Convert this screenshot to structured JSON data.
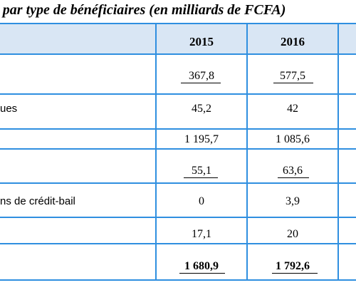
{
  "title": "s par type de bénéficiaires (en milliards de FCFA)",
  "table": {
    "columns": [
      "2015",
      "2016"
    ],
    "rows": [
      {
        "label": "",
        "v2015": "367,8",
        "v2016": "577,5"
      },
      {
        "label": "ues",
        "v2015": "45,2",
        "v2016": "42"
      },
      {
        "label": "",
        "v2015": "1 195,7",
        "v2016": "1 085,6"
      },
      {
        "label": "",
        "v2015": "55,1",
        "v2016": "63,6"
      },
      {
        "label": "ns de crédit-bail",
        "v2015": "0",
        "v2016": "3,9"
      },
      {
        "label": "",
        "v2015": "17,1",
        "v2016": "20"
      },
      {
        "label": "",
        "v2015": "1 680,9",
        "v2016": "1 792,6"
      }
    ]
  },
  "colors": {
    "border": "#2f8fe0",
    "header_bg": "#d9e6f4"
  }
}
